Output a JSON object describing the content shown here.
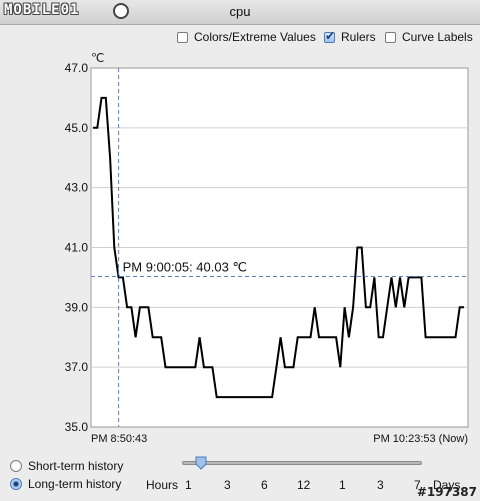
{
  "window": {
    "title": "cpu",
    "watermark": "MOBILE01"
  },
  "options": [
    {
      "label": "Colors/Extreme Values",
      "checked": false
    },
    {
      "label": "Rulers",
      "checked": true
    },
    {
      "label": "Curve Labels",
      "checked": false
    }
  ],
  "chart_data": {
    "type": "line",
    "ylabel": "℃",
    "ylim": [
      35,
      47
    ],
    "yticks": [
      "47.0",
      "45.0",
      "43.0",
      "41.0",
      "39.0",
      "37.0",
      "35.0"
    ],
    "x_start_label": "PM 8:50:43",
    "x_end_label": "PM 10:23:53 (Now)",
    "ruler_label": "PM 9:00:05: 40.03 ℃",
    "ruler_value": 40.03,
    "grid": true,
    "series": [
      {
        "values": [
          45.0,
          45.0,
          46.0,
          46.0,
          44.0,
          41.0,
          40.0,
          40.0,
          39.0,
          39.0,
          38.0,
          39.0,
          39.0,
          39.0,
          38.0,
          38.0,
          38.0,
          37.0,
          37.0,
          37.0,
          37.0,
          37.0,
          37.0,
          37.0,
          37.0,
          38.0,
          37.0,
          37.0,
          37.0,
          36.0,
          36.0,
          36.0,
          36.0,
          36.0,
          36.0,
          36.0,
          36.0,
          36.0,
          36.0,
          36.0,
          36.0,
          36.0,
          36.0,
          37.0,
          38.0,
          37.0,
          37.0,
          37.0,
          38.0,
          38.0,
          38.0,
          38.0,
          39.0,
          38.0,
          38.0,
          38.0,
          38.0,
          38.0,
          37.0,
          39.0,
          38.0,
          39.0,
          41.0,
          41.0,
          39.0,
          39.0,
          40.0,
          38.0,
          38.0,
          39.0,
          40.0,
          39.0,
          40.0,
          39.0,
          40.0,
          40.0,
          40.0,
          40.0,
          38.0,
          38.0,
          38.0,
          38.0,
          38.0,
          38.0,
          38.0,
          38.0,
          39.0,
          39.0
        ]
      }
    ]
  },
  "history": {
    "short_label": "Short-term history",
    "long_label": "Long-term history",
    "selected": "long"
  },
  "scale": {
    "unit_label": "Hours",
    "ticks": [
      "1",
      "3",
      "6",
      "12",
      "1",
      "3",
      "7"
    ],
    "days_label": "Days"
  },
  "credit": "#197387"
}
